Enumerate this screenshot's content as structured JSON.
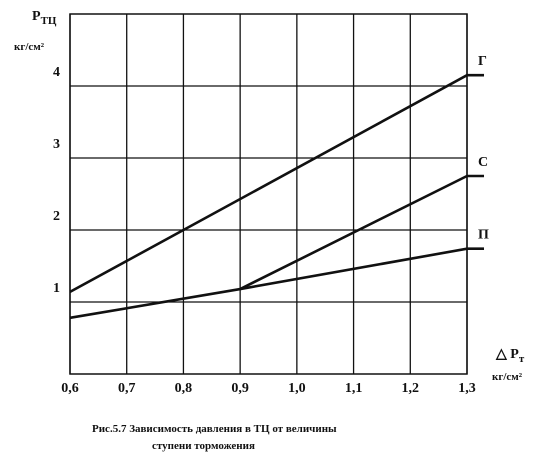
{
  "chart_data": {
    "type": "line",
    "y_label": "Р",
    "y_label_sub": "ТЦ",
    "y_unit": "кг/см²",
    "x_label": "△ Р",
    "x_label_sub": "т",
    "x_unit": "кг/см²",
    "caption": [
      "Рис.5.7  Зависимость давления в ТЦ от величины",
      "ступени торможения"
    ],
    "xlim": [
      0.6,
      1.3
    ],
    "ylim": [
      0,
      5
    ],
    "xticks": [
      {
        "value": 0.6,
        "label": "0,6"
      },
      {
        "value": 0.7,
        "label": "0,7"
      },
      {
        "value": 0.8,
        "label": "0,8"
      },
      {
        "value": 0.9,
        "label": "0,9"
      },
      {
        "value": 1.0,
        "label": "1,0"
      },
      {
        "value": 1.1,
        "label": "1,1"
      },
      {
        "value": 1.2,
        "label": "1,2"
      },
      {
        "value": 1.3,
        "label": "1,3"
      }
    ],
    "yticks": [
      1,
      2,
      3,
      4
    ],
    "grid": true,
    "series": [
      {
        "name": "Г",
        "color": "#111111",
        "x": [
          0.6,
          1.3,
          1.33
        ],
        "values": [
          1.14,
          4.15,
          4.15
        ]
      },
      {
        "name": "С",
        "color": "#111111",
        "x": [
          0.9,
          1.3,
          1.33
        ],
        "values": [
          1.18,
          2.75,
          2.75
        ]
      },
      {
        "name": "П",
        "color": "#111111",
        "x": [
          0.6,
          0.9,
          1.3,
          1.33
        ],
        "values": [
          0.78,
          1.18,
          1.74,
          1.74
        ]
      }
    ]
  }
}
